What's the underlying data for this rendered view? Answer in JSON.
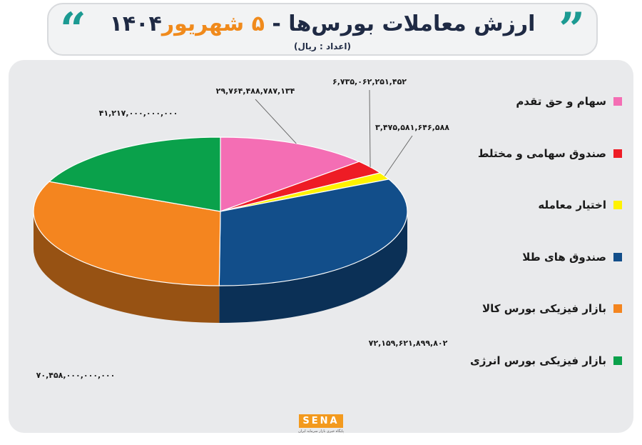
{
  "header": {
    "title_main": "ارزش معاملات بورس‌ها - ",
    "title_highlight": "۵ شهریور",
    "title_year": "۱۴۰۴",
    "subtitle": "(اعداد : ریال)",
    "quote_open": "“",
    "quote_close": "”",
    "accent_color": "#1c9a92",
    "highlight_color": "#f08a1c"
  },
  "legend": {
    "items": [
      {
        "label": "سهام و حق تقدم",
        "color": "#f46eb4"
      },
      {
        "label": "صندوق سهامی و مختلط",
        "color": "#ee1c25"
      },
      {
        "label": "اختیار معامله",
        "color": "#fff200"
      },
      {
        "label": "صندوق های طلا",
        "color": "#124e8a"
      },
      {
        "label": "بازار فیزیکی بورس کالا",
        "color": "#f4851f"
      },
      {
        "label": "بازار فیزیکی بورس انرژی",
        "color": "#0aa14b"
      }
    ]
  },
  "chart_data": {
    "type": "pie",
    "title": "ارزش معاملات بورس‌ها - ۵ شهریور ۱۴۰۴",
    "unit": "ریال",
    "slices": [
      {
        "name": "سهام و حق تقدم",
        "value": 29764488787134,
        "label": "۲۹,۷۶۴,۴۸۸,۷۸۷,۱۳۴",
        "color": "#f46eb4"
      },
      {
        "name": "صندوق سهامی و مختلط",
        "value": 6735062251452,
        "label": "۶,۷۳۵,۰۶۲,۲۵۱,۴۵۲",
        "color": "#ee1c25"
      },
      {
        "name": "اختیار معامله",
        "value": 3475581646588,
        "label": "۳,۴۷۵,۵۸۱,۶۴۶,۵۸۸",
        "color": "#fff200"
      },
      {
        "name": "صندوق های طلا",
        "value": 72159621899802,
        "label": "۷۲,۱۵۹,۶۲۱,۸۹۹,۸۰۲",
        "color": "#124e8a"
      },
      {
        "name": "بازار فیزیکی بورس کالا",
        "value": 70458000000000,
        "label": "۷۰,۴۵۸,۰۰۰,۰۰۰,۰۰۰",
        "color": "#f4851f"
      },
      {
        "name": "بازار فیزیکی بورس انرژی",
        "value": 41217000000000,
        "label": "۴۱,۲۱۷,۰۰۰,۰۰۰,۰۰۰",
        "color": "#0aa14b"
      }
    ],
    "style": "3d-pie",
    "legend_position": "right"
  },
  "footer": {
    "logo_text": "SENA",
    "logo_subtitle": "پایگاه خبری بازار سرمایه ایران"
  }
}
